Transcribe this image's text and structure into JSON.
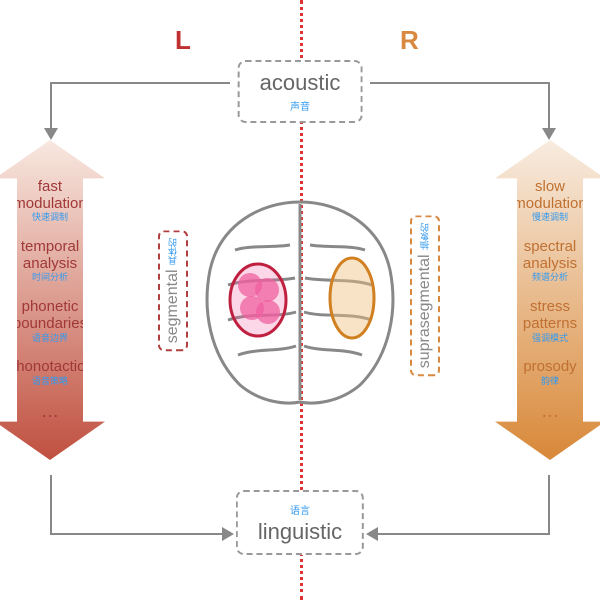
{
  "labels": {
    "L": "L",
    "R": "R",
    "L_color": "#c03030",
    "R_color": "#d98840",
    "divider_color": "#dd3333"
  },
  "top_box": {
    "en": "acoustic",
    "zh": "声音"
  },
  "bottom_box": {
    "en": "linguistic",
    "zh": "语言"
  },
  "segmental": {
    "en": "segmental",
    "zh": "具体的",
    "border": "#b04040"
  },
  "suprasegmental": {
    "en": "suprasegmental",
    "zh": "抽象的",
    "border": "#d98840"
  },
  "left_arrow": {
    "gradient_top": "#f8e8e0",
    "gradient_bottom": "#c05040",
    "text_color": "#a03838",
    "items": [
      {
        "en": "fast modulation",
        "zh": "快速调制"
      },
      {
        "en": "temporal analysis",
        "zh": "时间分析"
      },
      {
        "en": "phonetic boundaries",
        "zh": "语音边界"
      },
      {
        "en": "phonotactics",
        "zh": "语音策略"
      }
    ]
  },
  "right_arrow": {
    "gradient_top": "#f8ece0",
    "gradient_bottom": "#d88838",
    "text_color": "#c07030",
    "items": [
      {
        "en": "slow modulation",
        "zh": "慢速调制"
      },
      {
        "en": "spectral analysis",
        "zh": "频谱分析"
      },
      {
        "en": "stress patterns",
        "zh": "强调模式"
      },
      {
        "en": "prosody",
        "zh": "韵律"
      }
    ]
  },
  "brain": {
    "outline": "#888888",
    "left_region_fill": "#f060a0",
    "left_region_stroke": "#c02040",
    "right_region_fill": "#f0c080",
    "right_region_stroke": "#d08020"
  },
  "connector_color": "#888888"
}
